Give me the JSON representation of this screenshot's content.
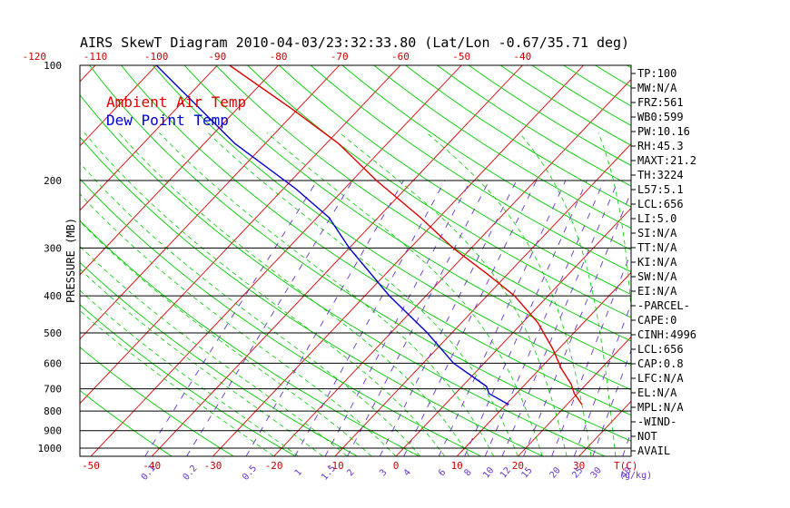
{
  "chart_data": {
    "type": "line",
    "title": "AIRS SkewT Diagram 2010-04-03/23:32:33.80 (Lat/Lon -0.67/35.71 deg)",
    "ylabel": "PRESSURE (MB)",
    "pressure_levels": [
      100,
      200,
      300,
      400,
      500,
      600,
      700,
      800,
      900,
      1000
    ],
    "pressure_labels": [
      "100",
      "200",
      "300",
      "400",
      "500",
      "600",
      "700",
      "800",
      "900",
      "1000"
    ],
    "bottom_temp_ticks": [
      -50,
      -40,
      -30,
      -20,
      -10,
      0,
      10,
      20,
      30
    ],
    "bottom_temp_labels": [
      "-50",
      "-40",
      "-30",
      "-20",
      "-10",
      "0",
      "10",
      "20",
      "30"
    ],
    "top_temp_ticks": [
      -120,
      -110,
      -100,
      -90,
      -80,
      -70,
      -60,
      -50,
      -40
    ],
    "top_temp_labels": [
      "-120",
      "-110",
      "-100",
      "-90",
      "-80",
      "-70",
      "-60",
      "-50",
      "-40"
    ],
    "temp_unit_label": "T(C)",
    "mixing_ratios": [
      0.1,
      0.2,
      0.5,
      1,
      1.5,
      2,
      3,
      4,
      6,
      8,
      10,
      12,
      15,
      20,
      25,
      30,
      40
    ],
    "mixing_ratio_labels": [
      "0.1",
      "0.2",
      "0.5",
      "1",
      "1.5",
      "2",
      "3",
      "4",
      "6",
      "8",
      "10",
      "12",
      "15",
      "20",
      "25",
      "30",
      "40"
    ],
    "mixing_ratio_unit_label": "(g/kg)",
    "legend": {
      "position": "top-left",
      "entries": [
        {
          "name": "Ambient Air Temp",
          "color": "#dd0000"
        },
        {
          "name": "Dew Point Temp",
          "color": "#0000cc"
        }
      ]
    },
    "series": [
      {
        "name": "Ambient Air Temp",
        "color": "#dd0000",
        "points": [
          {
            "p": 770,
            "t": 22.5
          },
          {
            "p": 720,
            "t": 19.5
          },
          {
            "p": 680,
            "t": 17.5
          },
          {
            "p": 620,
            "t": 13.5
          },
          {
            "p": 550,
            "t": 9.0
          },
          {
            "p": 470,
            "t": 2.5
          },
          {
            "p": 400,
            "t": -5.5
          },
          {
            "p": 350,
            "t": -13.5
          },
          {
            "p": 300,
            "t": -23.0
          },
          {
            "p": 250,
            "t": -33.0
          },
          {
            "p": 200,
            "t": -46.0
          },
          {
            "p": 160,
            "t": -58.0
          },
          {
            "p": 130,
            "t": -71.0
          },
          {
            "p": 100,
            "t": -88.0
          }
        ]
      },
      {
        "name": "Dew Point Temp",
        "color": "#0000cc",
        "points": [
          {
            "p": 770,
            "t": 10.5
          },
          {
            "p": 720,
            "t": 5.5
          },
          {
            "p": 690,
            "t": 4.0
          },
          {
            "p": 600,
            "t": -5.0
          },
          {
            "p": 500,
            "t": -14.0
          },
          {
            "p": 400,
            "t": -26.0
          },
          {
            "p": 300,
            "t": -40.0
          },
          {
            "p": 250,
            "t": -48.0
          },
          {
            "p": 210,
            "t": -58.0
          },
          {
            "p": 160,
            "t": -75.0
          },
          {
            "p": 100,
            "t": -100.0
          }
        ]
      }
    ]
  },
  "side_panel": [
    "TP:100",
    "MW:N/A",
    "FRZ:561",
    "WB0:599",
    "PW:10.16",
    "RH:45.3",
    "MAXT:21.2",
    "TH:3224",
    "L57:5.1",
    "LCL:656",
    "LI:5.0",
    "SI:N/A",
    "TT:N/A",
    "KI:N/A",
    "SW:N/A",
    "EI:N/A",
    "-PARCEL-",
    "CAPE:0",
    "CINH:4996",
    "LCL:656",
    "CAP:0.8",
    "LFC:N/A",
    "EL:N/A",
    "MPL:N/A",
    "-WIND-",
    "NOT",
    "AVAIL"
  ],
  "colors": {
    "isotherm": "#dd0000",
    "dry_adiabat": "#00cc00",
    "mixing_ratio": "#6633cc",
    "isobar": "#000000"
  }
}
